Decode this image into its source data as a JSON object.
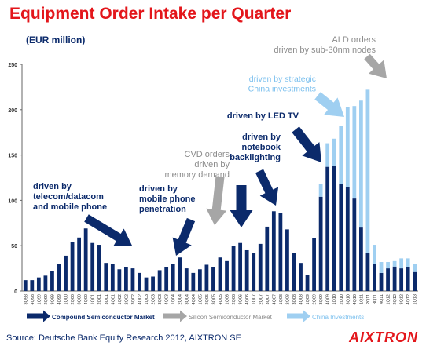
{
  "title": "Equipment Order Intake per Quarter",
  "unit": "(EUR million)",
  "source": "Source: Deutsche Bank Equity Research 2012, AIXTRON SE",
  "logo": "AIXTRON",
  "colors": {
    "compound": "#0b2a6b",
    "silicon": "#a6a6a6",
    "china": "#9fcff1",
    "title": "#e3161b",
    "annotation_text": "#0b2a6b",
    "grey_text": "#8c8c8c",
    "light_text": "#7cc0ee"
  },
  "chart_data": {
    "type": "bar",
    "ylim": [
      0,
      250
    ],
    "yticks": [
      0,
      50,
      100,
      150,
      200,
      250
    ],
    "grid": false,
    "categories": [
      "3Q98",
      "4Q98",
      "1Q99",
      "2Q99",
      "3Q99",
      "4Q99",
      "1Q00",
      "2Q00",
      "3Q00",
      "4Q00",
      "1Q01",
      "2Q01",
      "3Q01",
      "4Q01",
      "1Q02",
      "2Q02",
      "3Q02",
      "4Q02",
      "1Q03",
      "2Q03",
      "3Q03",
      "4Q03",
      "1Q04",
      "2Q04",
      "3Q04",
      "4Q04",
      "1Q05",
      "2Q05",
      "3Q05",
      "4Q05",
      "1Q06",
      "2Q06",
      "3Q06",
      "4Q06",
      "1Q07",
      "2Q07",
      "3Q07",
      "4Q07",
      "1Q08",
      "2Q08",
      "3Q08",
      "4Q08",
      "1Q09",
      "2Q09",
      "3Q09",
      "4Q09",
      "1Q10",
      "2Q10",
      "3Q10",
      "4Q10",
      "1Q11",
      "2Q11",
      "3Q11",
      "4Q11",
      "1Q12",
      "2Q12",
      "3Q12",
      "4Q12",
      "1Q13"
    ],
    "series": [
      {
        "name": "Compound Semiconductor Market",
        "values": [
          12,
          12,
          15,
          17,
          22,
          30,
          39,
          54,
          59,
          69,
          53,
          51,
          31,
          30,
          24,
          26,
          25,
          20,
          15,
          16,
          23,
          26,
          30,
          37,
          25,
          20,
          24,
          29,
          26,
          37,
          33,
          50,
          53,
          45,
          42,
          52,
          71,
          88,
          86,
          68,
          42,
          31,
          18,
          58,
          104,
          137,
          138,
          118,
          115,
          102,
          70,
          42,
          30,
          20,
          25,
          27,
          25,
          26,
          21
        ]
      },
      {
        "name": "Silicon Semiconductor Market",
        "values": [
          0,
          0,
          0,
          0,
          0,
          0,
          0,
          0,
          0,
          0,
          0,
          0,
          0,
          0,
          0,
          0,
          0,
          0,
          0,
          0,
          0,
          0,
          0,
          0,
          0,
          0,
          0,
          0,
          0,
          0,
          0,
          0,
          0,
          0,
          0,
          0,
          0,
          0,
          0,
          0,
          0,
          0,
          0,
          0,
          0,
          0,
          0,
          0,
          0,
          0,
          0,
          0,
          0,
          0,
          0,
          0,
          0,
          0,
          0
        ]
      },
      {
        "name": "China Investments",
        "values": [
          0,
          0,
          0,
          0,
          0,
          0,
          0,
          0,
          0,
          0,
          0,
          0,
          0,
          0,
          0,
          0,
          0,
          0,
          0,
          0,
          0,
          0,
          0,
          0,
          0,
          0,
          0,
          0,
          0,
          0,
          0,
          0,
          0,
          0,
          0,
          0,
          0,
          0,
          0,
          0,
          0,
          0,
          0,
          0,
          14,
          26,
          30,
          64,
          88,
          102,
          140,
          180,
          21,
          12,
          7,
          6,
          11,
          10,
          9
        ]
      }
    ],
    "legend": [
      "Compound Semiconductor Market",
      "Silicon Semiconductor Market",
      "China Investments"
    ],
    "legend_position": "bottom",
    "annotations": [
      {
        "lines": [
          "driven by",
          "telecom/datacom",
          "and mobile phone"
        ],
        "style": "compound"
      },
      {
        "lines": [
          "driven by",
          "mobile phone",
          "penetration"
        ],
        "style": "compound"
      },
      {
        "lines": [
          "CVD orders",
          "driven by",
          "memory demand"
        ],
        "style": "silicon"
      },
      {
        "lines": [
          "driven by",
          "notebook",
          "backlighting"
        ],
        "style": "compound"
      },
      {
        "lines": [
          "driven by LED TV"
        ],
        "style": "compound"
      },
      {
        "lines": [
          "driven by strategic",
          "China investments"
        ],
        "style": "china"
      },
      {
        "lines": [
          "ALD orders",
          "driven by sub-30nm nodes"
        ],
        "style": "silicon"
      }
    ]
  }
}
